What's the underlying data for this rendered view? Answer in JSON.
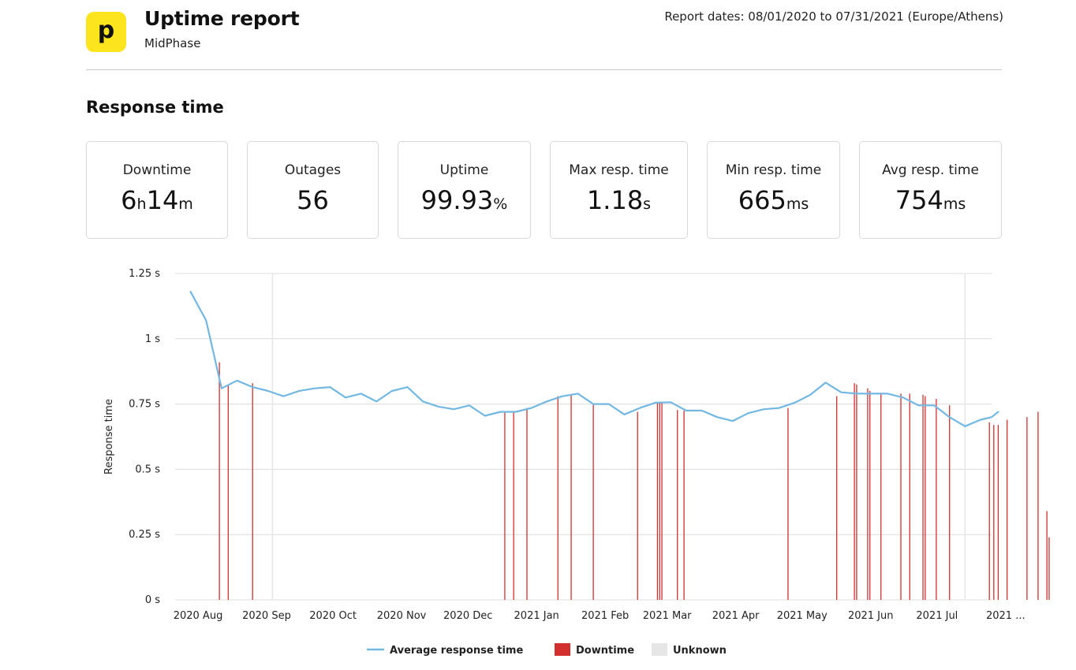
{
  "header": {
    "logo_letter": "p",
    "title": "Uptime report",
    "subtitle": "MidPhase",
    "report_dates": "Report dates: 08/01/2020 to 07/31/2021 (Europe/Athens)"
  },
  "section_title": "Response time",
  "stats": [
    {
      "label": "Downtime",
      "value_parts": [
        {
          "t": "6",
          "u": false
        },
        {
          "t": "h",
          "u": true
        },
        {
          "t": "14",
          "u": false
        },
        {
          "t": "m",
          "u": true
        }
      ]
    },
    {
      "label": "Outages",
      "value_parts": [
        {
          "t": "56",
          "u": false
        }
      ]
    },
    {
      "label": "Uptime",
      "value_parts": [
        {
          "t": "99.93",
          "u": false
        },
        {
          "t": "%",
          "u": true
        }
      ]
    },
    {
      "label": "Max resp. time",
      "value_parts": [
        {
          "t": "1.18",
          "u": false
        },
        {
          "t": "s",
          "u": true
        }
      ]
    },
    {
      "label": "Min resp. time",
      "value_parts": [
        {
          "t": "665",
          "u": false
        },
        {
          "t": "ms",
          "u": true
        }
      ]
    },
    {
      "label": "Avg resp. time",
      "value_parts": [
        {
          "t": "754",
          "u": false
        },
        {
          "t": "ms",
          "u": true
        }
      ]
    }
  ],
  "colors": {
    "line": "#72b8e3",
    "downtime": "#d32f2f",
    "unknown": "#e6e6e6",
    "grid": "#dcdcdc",
    "brand_yellow": "#fde51e"
  },
  "chart_data": {
    "type": "line",
    "ylabel": "Response time",
    "ylim": [
      0,
      1.25
    ],
    "yticks": [
      {
        "v": 0,
        "label": "0 s"
      },
      {
        "v": 0.25,
        "label": "0.25 s"
      },
      {
        "v": 0.5,
        "label": "0.5 s"
      },
      {
        "v": 0.75,
        "label": "0.75 s"
      },
      {
        "v": 1,
        "label": "1 s"
      },
      {
        "v": 1.25,
        "label": "1.25 s"
      }
    ],
    "xlim": [
      "2020-07-27",
      "2021-07-31"
    ],
    "xticks": [
      {
        "date": "2020-08-01",
        "label": "2020 Aug"
      },
      {
        "date": "2020-09-01",
        "label": "2020 Sep"
      },
      {
        "date": "2020-10-01",
        "label": "2020 Oct"
      },
      {
        "date": "2020-11-01",
        "label": "2020 Nov"
      },
      {
        "date": "2020-12-01",
        "label": "2020 Dec"
      },
      {
        "date": "2021-01-01",
        "label": "2021 Jan"
      },
      {
        "date": "2021-02-01",
        "label": "2021 Feb"
      },
      {
        "date": "2021-03-01",
        "label": "2021 Mar"
      },
      {
        "date": "2021-04-01",
        "label": "2021 Apr"
      },
      {
        "date": "2021-05-01",
        "label": "2021 May"
      },
      {
        "date": "2021-06-01",
        "label": "2021 Jun"
      },
      {
        "date": "2021-07-01",
        "label": "2021 Jul"
      },
      {
        "date": "2021-08-01",
        "label": "2021 ..."
      }
    ],
    "series": [
      {
        "name": "Average response time",
        "points": [
          [
            "2020-08-03",
            1.18
          ],
          [
            "2020-08-10",
            1.07
          ],
          [
            "2020-08-17",
            0.81
          ],
          [
            "2020-08-24",
            0.84
          ],
          [
            "2020-08-31",
            0.815
          ],
          [
            "2020-09-07",
            0.8
          ],
          [
            "2020-09-14",
            0.78
          ],
          [
            "2020-09-21",
            0.8
          ],
          [
            "2020-09-28",
            0.81
          ],
          [
            "2020-10-05",
            0.815
          ],
          [
            "2020-10-12",
            0.775
          ],
          [
            "2020-10-19",
            0.79
          ],
          [
            "2020-10-26",
            0.76
          ],
          [
            "2020-11-02",
            0.8
          ],
          [
            "2020-11-09",
            0.815
          ],
          [
            "2020-11-16",
            0.76
          ],
          [
            "2020-11-23",
            0.74
          ],
          [
            "2020-11-30",
            0.73
          ],
          [
            "2020-12-07",
            0.745
          ],
          [
            "2020-12-14",
            0.705
          ],
          [
            "2020-12-21",
            0.72
          ],
          [
            "2020-12-28",
            0.72
          ],
          [
            "2021-01-04",
            0.735
          ],
          [
            "2021-01-11",
            0.76
          ],
          [
            "2021-01-18",
            0.78
          ],
          [
            "2021-01-25",
            0.79
          ],
          [
            "2021-02-01",
            0.75
          ],
          [
            "2021-02-08",
            0.75
          ],
          [
            "2021-02-15",
            0.71
          ],
          [
            "2021-02-22",
            0.735
          ],
          [
            "2021-03-01",
            0.755
          ],
          [
            "2021-03-08",
            0.757
          ],
          [
            "2021-03-15",
            0.725
          ],
          [
            "2021-03-22",
            0.725
          ],
          [
            "2021-03-29",
            0.7
          ],
          [
            "2021-04-05",
            0.685
          ],
          [
            "2021-04-12",
            0.715
          ],
          [
            "2021-04-19",
            0.73
          ],
          [
            "2021-04-26",
            0.735
          ],
          [
            "2021-05-03",
            0.755
          ],
          [
            "2021-05-10",
            0.785
          ],
          [
            "2021-05-17",
            0.832
          ],
          [
            "2021-05-24",
            0.795
          ],
          [
            "2021-05-31",
            0.79
          ],
          [
            "2021-06-07",
            0.79
          ],
          [
            "2021-06-14",
            0.79
          ],
          [
            "2021-06-21",
            0.775
          ],
          [
            "2021-06-28",
            0.745
          ],
          [
            "2021-07-05",
            0.745
          ],
          [
            "2021-07-12",
            0.7
          ],
          [
            "2021-07-19",
            0.665
          ],
          [
            "2021-07-26",
            0.69
          ],
          [
            "2021-07-31",
            0.7
          ],
          [
            "2021-08-03",
            0.72
          ]
        ]
      }
    ],
    "downtime_events": [
      {
        "date": "2020-08-16",
        "value": 0.91
      },
      {
        "date": "2020-08-20",
        "value": 0.82
      },
      {
        "date": "2020-08-31",
        "value": 0.83
      },
      {
        "date": "2020-12-23",
        "value": 0.72
      },
      {
        "date": "2020-12-27",
        "value": 0.72
      },
      {
        "date": "2021-01-02",
        "value": 0.735
      },
      {
        "date": "2021-01-16",
        "value": 0.78
      },
      {
        "date": "2021-01-22",
        "value": 0.785
      },
      {
        "date": "2021-02-01",
        "value": 0.75
      },
      {
        "date": "2021-02-21",
        "value": 0.72
      },
      {
        "date": "2021-03-02",
        "value": 0.755
      },
      {
        "date": "2021-03-03",
        "value": 0.755
      },
      {
        "date": "2021-03-04",
        "value": 0.756
      },
      {
        "date": "2021-03-11",
        "value": 0.727
      },
      {
        "date": "2021-03-14",
        "value": 0.725
      },
      {
        "date": "2021-04-30",
        "value": 0.735
      },
      {
        "date": "2021-05-22",
        "value": 0.78
      },
      {
        "date": "2021-05-30",
        "value": 0.83
      },
      {
        "date": "2021-05-31",
        "value": 0.825
      },
      {
        "date": "2021-06-05",
        "value": 0.81
      },
      {
        "date": "2021-06-06",
        "value": 0.8
      },
      {
        "date": "2021-06-11",
        "value": 0.79
      },
      {
        "date": "2021-06-20",
        "value": 0.79
      },
      {
        "date": "2021-06-24",
        "value": 0.79
      },
      {
        "date": "2021-06-30",
        "value": 0.785
      },
      {
        "date": "2021-07-01",
        "value": 0.78
      },
      {
        "date": "2021-07-06",
        "value": 0.77
      },
      {
        "date": "2021-07-12",
        "value": 0.745
      },
      {
        "date": "2021-07-30",
        "value": 0.68
      },
      {
        "date": "2021-08-01",
        "value": 0.67
      },
      {
        "date": "2021-08-03",
        "value": 0.67
      },
      {
        "date": "2021-08-07",
        "value": 0.69
      },
      {
        "date": "2021-08-16",
        "value": 0.7
      },
      {
        "date": "2021-08-21",
        "value": 0.72
      },
      {
        "date": "2021-08-25",
        "value": 0.34
      },
      {
        "date": "2021-08-26",
        "value": 0.24
      }
    ],
    "unknown_events": [
      {
        "date": "2020-09-09"
      },
      {
        "date": "2021-07-19"
      }
    ],
    "legend": [
      {
        "name": "Average response time",
        "kind": "line"
      },
      {
        "name": "Downtime",
        "kind": "downtime"
      },
      {
        "name": "Unknown",
        "kind": "unknown"
      }
    ],
    "legend_position": "bottom-center",
    "grid": true
  }
}
